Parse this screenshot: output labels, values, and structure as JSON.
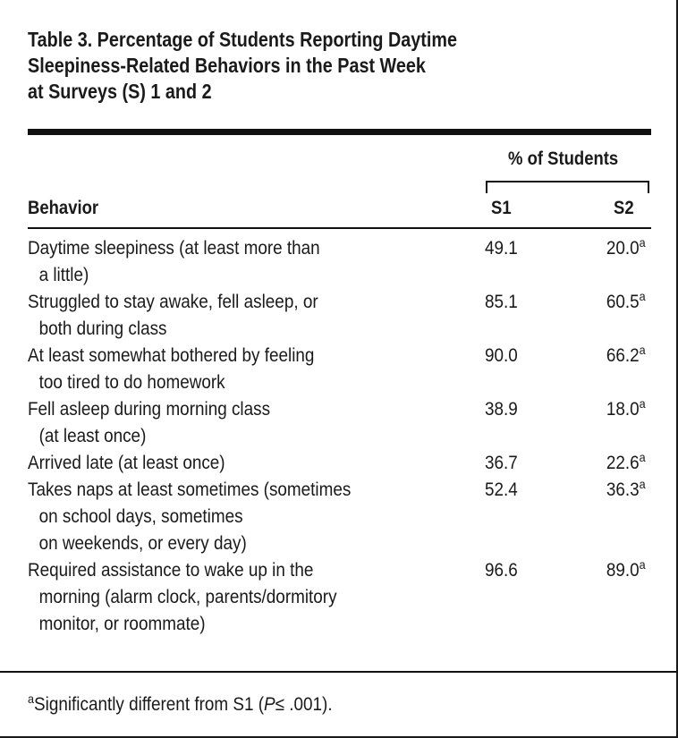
{
  "title": {
    "lines": [
      "Table 3. Percentage of Students Reporting Daytime",
      "Sleepiness-Related Behaviors in the Past Week",
      "at Surveys (S) 1 and 2"
    ]
  },
  "header": {
    "group_label": "% of Students",
    "col_behavior": "Behavior",
    "col_s1": "S1",
    "col_s2": "S2"
  },
  "rows": [
    {
      "behavior_lines": [
        "Daytime sleepiness (at least more than",
        "a little)"
      ],
      "s1": "49.1",
      "s2": "20.0",
      "s2_mark": "a"
    },
    {
      "behavior_lines": [
        "Struggled to stay awake, fell asleep, or",
        "both during class"
      ],
      "s1": "85.1",
      "s2": "60.5",
      "s2_mark": "a"
    },
    {
      "behavior_lines": [
        "At least somewhat bothered by feeling",
        "too tired to do homework"
      ],
      "s1": "90.0",
      "s2": "66.2",
      "s2_mark": "a"
    },
    {
      "behavior_lines": [
        "Fell asleep during morning class",
        "(at least once)"
      ],
      "s1": "38.9",
      "s2": "18.0",
      "s2_mark": "a"
    },
    {
      "behavior_lines": [
        "Arrived late (at least once)"
      ],
      "s1": "36.7",
      "s2": "22.6",
      "s2_mark": "a"
    },
    {
      "behavior_lines": [
        "Takes naps at least sometimes (sometimes",
        "on school days, sometimes",
        "on weekends, or every day)"
      ],
      "s1": "52.4",
      "s2": "36.3",
      "s2_mark": "a"
    },
    {
      "behavior_lines": [
        "Required assistance to wake up in the",
        "morning (alarm clock, parents/dormitory",
        "monitor, or roommate)"
      ],
      "s1": "96.6",
      "s2": "89.0",
      "s2_mark": "a"
    }
  ],
  "footnote": {
    "mark": "a",
    "text_before": "Significantly different from S1 (",
    "p_symbol": "P",
    "text_after": "≤ .001)."
  }
}
